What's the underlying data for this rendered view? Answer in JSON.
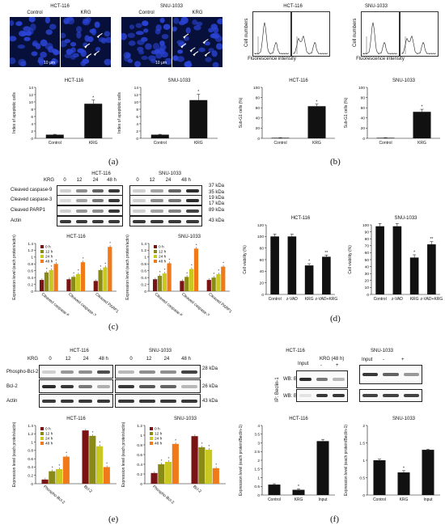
{
  "panel_a": {
    "letter": "(a)",
    "images": [
      {
        "cell": "HCT-116",
        "cond": [
          "Control",
          "KRG"
        ],
        "scale": "10 μm"
      },
      {
        "cell": "SNU-1033",
        "cond": [
          "Control",
          "KRG"
        ],
        "scale": "10 μm"
      }
    ]
  },
  "panel_b": {
    "letter": "(b)",
    "flow": [
      {
        "cell": "HCT-116",
        "ylabel": "Cell numbers",
        "xlabel": "Fluorescence intensity"
      },
      {
        "cell": "SNU-1033",
        "ylabel": "Cell numbers",
        "xlabel": "Fluorescence intensity"
      }
    ]
  },
  "panel_c": {
    "letter": "(c)",
    "krg": "KRG",
    "lines": [
      "HCT-116",
      "SNU-1033"
    ],
    "timepoints": [
      "0",
      "12",
      "24",
      "48 h"
    ],
    "rows": [
      "Cleaved caspase-9",
      "Cleaved caspase-3",
      "Cleaved PARP1",
      "Actin"
    ],
    "kda": [
      "37 kDa",
      "35 kDa",
      "19 kDa",
      "17 kDa",
      "89 kDa",
      "43 kDa"
    ]
  },
  "panel_d": {
    "letter": "(d)"
  },
  "panel_e": {
    "letter": "(e)",
    "krg": "KRG",
    "lines": [
      "HCT-116",
      "SNU-1033"
    ],
    "timepoints": [
      "0",
      "12",
      "24",
      "48 h"
    ],
    "rows": [
      "Phospho-Bcl-2",
      "Bcl-2",
      "Actin"
    ],
    "kda": [
      "28 kDa",
      "26 kDa",
      "43 kDa"
    ]
  },
  "panel_f": {
    "letter": "(f)",
    "lines": [
      "HCT-116",
      "SNU-1033"
    ],
    "input": "Input",
    "krg48": "KRG (48 h)",
    "minus": "-",
    "plus": "+",
    "ip": "IP: Beclin-1",
    "wb": [
      "WB: Bcl-2",
      "WB: Beclin-1"
    ]
  },
  "colors": {
    "c0": "#7a1313",
    "c12": "#8a8a16",
    "c24": "#c8c820",
    "c48": "#f07a1a",
    "dapi": "#0a1a6e"
  },
  "chart_data": [
    {
      "id": "a1",
      "type": "bar",
      "title": "HCT-116",
      "ylabel": "Index of apoptotic cells",
      "categories": [
        "Control",
        "KRG"
      ],
      "values": [
        1,
        9.5
      ],
      "errors": [
        0.1,
        1.0
      ],
      "ylim": [
        0,
        14
      ],
      "yticks": [
        0,
        2,
        4,
        6,
        8,
        10,
        12,
        14
      ],
      "stars": [
        "",
        "*"
      ]
    },
    {
      "id": "a2",
      "type": "bar",
      "title": "SNU-1033",
      "ylabel": "Index of apoptotic cells",
      "categories": [
        "Control",
        "KRG"
      ],
      "values": [
        1,
        10.5
      ],
      "errors": [
        0.1,
        1.6
      ],
      "ylim": [
        0,
        14
      ],
      "yticks": [
        0,
        2,
        4,
        6,
        8,
        10,
        12,
        14
      ],
      "stars": [
        "",
        "*"
      ]
    },
    {
      "id": "b1",
      "type": "bar",
      "title": "HCT-116",
      "ylabel": "Sub-G1 cells (%)",
      "categories": [
        "Control",
        "KRG"
      ],
      "values": [
        1,
        63
      ],
      "errors": [
        0.3,
        4
      ],
      "ylim": [
        0,
        100
      ],
      "yticks": [
        0,
        20,
        40,
        60,
        80,
        100
      ],
      "stars": [
        "",
        "*"
      ]
    },
    {
      "id": "b2",
      "type": "bar",
      "title": "SNU-1033",
      "ylabel": "Sub-G1 cells (%)",
      "categories": [
        "Control",
        "KRG"
      ],
      "values": [
        1,
        52
      ],
      "errors": [
        0.3,
        5
      ],
      "ylim": [
        0,
        100
      ],
      "yticks": [
        0,
        20,
        40,
        60,
        80,
        100
      ],
      "stars": [
        "",
        "*"
      ]
    },
    {
      "id": "c1",
      "type": "bar",
      "title": "HCT-116",
      "ylabel": "Expression level (each protein/actin)",
      "categories": [
        "Cleaved caspase-9",
        "Cleaved caspase-3",
        "Cleaved PARP1"
      ],
      "ylim": [
        0,
        1.4
      ],
      "yticks": [
        0,
        0.2,
        0.4,
        0.6,
        0.8,
        1.0,
        1.2,
        1.4
      ],
      "series": [
        {
          "name": "0 h",
          "values": [
            0.33,
            0.35,
            0.3
          ]
        },
        {
          "name": "12 h",
          "values": [
            0.55,
            0.42,
            0.62
          ]
        },
        {
          "name": "24 h",
          "values": [
            0.62,
            0.5,
            0.7
          ]
        },
        {
          "name": "48 h",
          "values": [
            0.8,
            0.85,
            1.3
          ]
        }
      ]
    },
    {
      "id": "c2",
      "type": "bar",
      "title": "SNU-1033",
      "ylabel": "Expression level (each protein/actin)",
      "categories": [
        "Cleaved caspase-9",
        "Cleaved caspase-3",
        "Cleaved PARP1"
      ],
      "ylim": [
        0,
        1.4
      ],
      "yticks": [
        0,
        0.2,
        0.4,
        0.6,
        0.8,
        1.0,
        1.2,
        1.4
      ],
      "series": [
        {
          "name": "0 h",
          "values": [
            0.35,
            0.3,
            0.33
          ]
        },
        {
          "name": "12 h",
          "values": [
            0.45,
            0.42,
            0.4
          ]
        },
        {
          "name": "24 h",
          "values": [
            0.52,
            0.65,
            0.5
          ]
        },
        {
          "name": "48 h",
          "values": [
            0.82,
            1.25,
            0.72
          ]
        }
      ]
    },
    {
      "id": "d1",
      "type": "bar",
      "title": "HCT-116",
      "ylabel": "Cell viability (%)",
      "categories": [
        "Control",
        "z-VAD",
        "KRG",
        "z-VAD+KRG"
      ],
      "values": [
        100,
        100,
        50,
        65
      ],
      "errors": [
        4,
        4,
        3,
        3
      ],
      "ylim": [
        0,
        120
      ],
      "yticks": [
        0,
        20,
        40,
        60,
        80,
        100,
        120
      ],
      "stars": [
        "",
        "",
        "*",
        "**"
      ]
    },
    {
      "id": "d2",
      "type": "bar",
      "title": "SNU-1033",
      "ylabel": "Cell viability (%)",
      "categories": [
        "Control",
        "z-VAD",
        "KRG",
        "z-VAD+KRG"
      ],
      "values": [
        98,
        98,
        53,
        72
      ],
      "errors": [
        4,
        4,
        4,
        4
      ],
      "ylim": [
        0,
        100
      ],
      "yticks": [
        0,
        10,
        20,
        30,
        40,
        50,
        60,
        70,
        80,
        90,
        100
      ],
      "stars": [
        "",
        "",
        "*",
        "**"
      ]
    },
    {
      "id": "e1",
      "type": "bar",
      "title": "HCT-116",
      "ylabel": "Expression level (each protein/actin)",
      "categories": [
        "Phospho-Bcl-2",
        "Bcl-2"
      ],
      "ylim": [
        0,
        1.4
      ],
      "yticks": [
        0,
        0.2,
        0.4,
        0.6,
        0.8,
        1.0,
        1.2,
        1.4
      ],
      "series": [
        {
          "name": "0 h",
          "values": [
            0.1,
            1.28
          ]
        },
        {
          "name": "12 h",
          "values": [
            0.3,
            1.15
          ]
        },
        {
          "name": "24 h",
          "values": [
            0.35,
            0.9
          ]
        },
        {
          "name": "48 h",
          "values": [
            0.65,
            0.4
          ]
        }
      ]
    },
    {
      "id": "e2",
      "type": "bar",
      "title": "SNU-1033",
      "ylabel": "Expression level (each protein/actin)",
      "categories": [
        "Phospho-Bcl-2",
        "Bcl-2"
      ],
      "ylim": [
        0,
        1.2
      ],
      "yticks": [
        0,
        0.2,
        0.4,
        0.6,
        0.8,
        1.0,
        1.2
      ],
      "series": [
        {
          "name": "0 h",
          "values": [
            0.22,
            0.98
          ]
        },
        {
          "name": "12 h",
          "values": [
            0.4,
            0.75
          ]
        },
        {
          "name": "24 h",
          "values": [
            0.45,
            0.7
          ]
        },
        {
          "name": "48 h",
          "values": [
            0.82,
            0.32
          ]
        }
      ]
    },
    {
      "id": "f1",
      "type": "bar",
      "title": "HCT-116",
      "ylabel": "Expression level (each protein/Beclin-1)",
      "categories": [
        "Control",
        "KRG",
        "Input"
      ],
      "values": [
        0.6,
        0.3,
        3.1
      ],
      "errors": [
        0.05,
        0.05,
        0.1
      ],
      "ylim": [
        0,
        4
      ],
      "yticks": [
        0,
        0.5,
        1,
        1.5,
        2,
        2.5,
        3,
        3.5,
        4
      ],
      "stars": [
        "",
        "*",
        ""
      ]
    },
    {
      "id": "f2",
      "type": "bar",
      "title": "SNU-1033",
      "ylabel": "Expression level (each protein/Beclin-1)",
      "categories": [
        "Control",
        "KRG",
        "Input"
      ],
      "values": [
        1.0,
        0.65,
        1.3
      ],
      "errors": [
        0.03,
        0.05,
        0.02
      ],
      "ylim": [
        0,
        2
      ],
      "yticks": [
        0,
        0.5,
        1,
        1.5,
        2
      ],
      "stars": [
        "",
        "*",
        ""
      ]
    }
  ]
}
